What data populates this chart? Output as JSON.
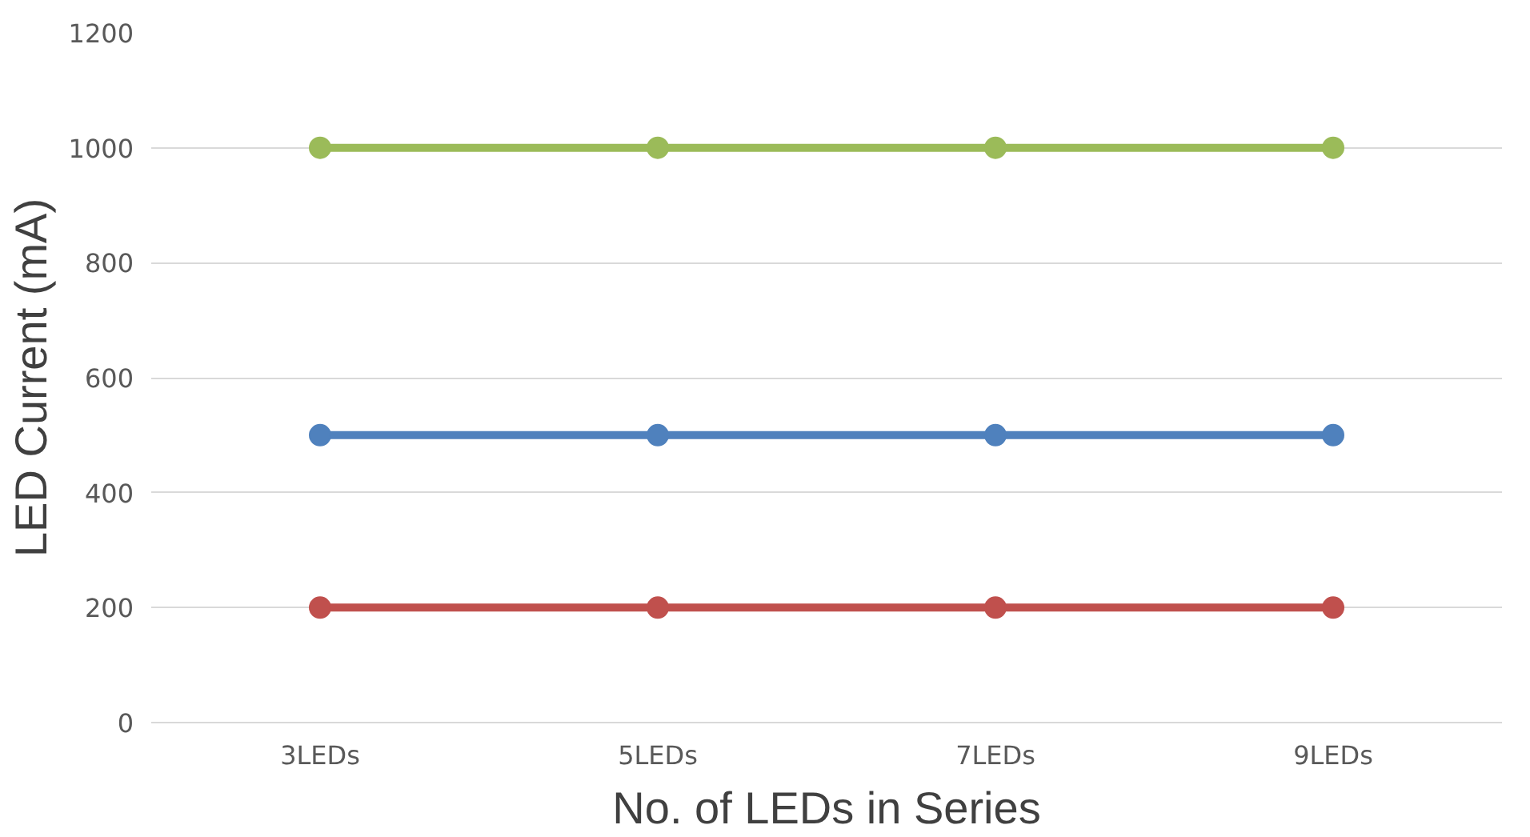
{
  "chart_data": {
    "type": "line",
    "xlabel": "No. of LEDs in Series",
    "ylabel": "LED Current (mA)",
    "categories": [
      "3LEDs",
      "5LEDs",
      "7LEDs",
      "9LEDs"
    ],
    "series": [
      {
        "color": "#9bbb59",
        "values": [
          1000,
          1000,
          1000,
          1000
        ]
      },
      {
        "color": "#4f81bd",
        "values": [
          500,
          500,
          500,
          500
        ]
      },
      {
        "color": "#c0504d",
        "values": [
          200,
          200,
          200,
          200
        ]
      }
    ],
    "ylim": [
      0,
      1200
    ],
    "yticks": [
      0,
      200,
      400,
      600,
      800,
      1000,
      1200
    ],
    "grid": "y",
    "marker": "circle"
  }
}
